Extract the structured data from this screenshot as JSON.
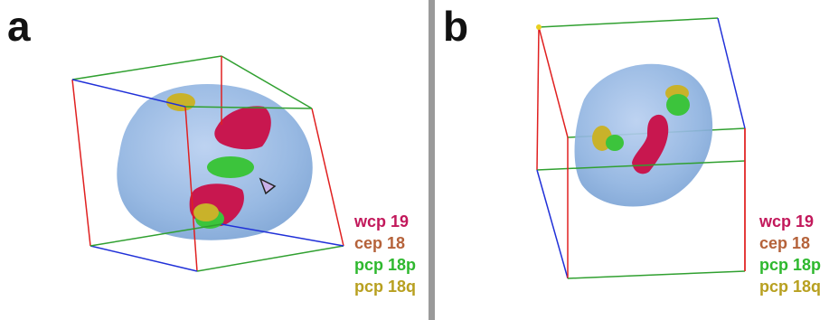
{
  "panels": [
    {
      "letter": "a",
      "legend": [
        {
          "label": "wcp 19",
          "color": "#c2185b"
        },
        {
          "label": "cep 18",
          "color": "#b5623a"
        },
        {
          "label": "pcp 18p",
          "color": "#2eb82e"
        },
        {
          "label": "pcp 18q",
          "color": "#b8a020"
        }
      ]
    },
    {
      "letter": "b",
      "legend": [
        {
          "label": "wcp 19",
          "color": "#c2185b"
        },
        {
          "label": "cep 18",
          "color": "#b5623a"
        },
        {
          "label": "pcp 18p",
          "color": "#2eb82e"
        },
        {
          "label": "pcp 18q",
          "color": "#b8a020"
        }
      ]
    }
  ],
  "colors": {
    "nucleus": "#8fb3e0",
    "wcp19": "#c8174f",
    "pcp18p": "#3cc43c",
    "pcp18q": "#c9b22a",
    "box_red": "#e02020",
    "box_blue": "#2030d8",
    "box_green": "#30a030",
    "divider": "#9a9a9a"
  }
}
